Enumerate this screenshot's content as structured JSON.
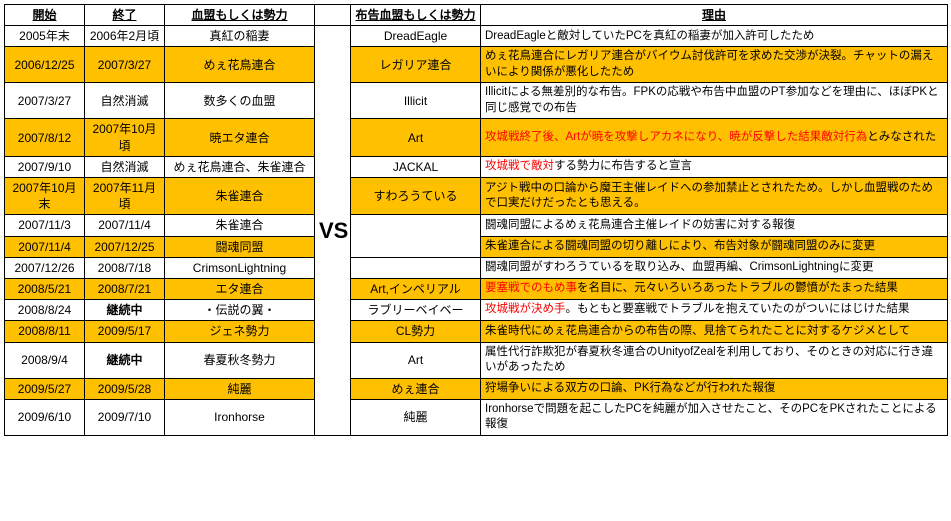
{
  "headers": {
    "start": "開始",
    "end": "終了",
    "clan": "血盟もしくは勢力",
    "vs": "",
    "target": "布告血盟もしくは勢力",
    "reason": "理由"
  },
  "vs_label": "VS",
  "colors": {
    "highlight": "#ffc000",
    "plain": "#ffffff",
    "red_text": "#ff0000"
  },
  "rows": [
    {
      "start": "2005年末",
      "end": "2006年2月頃",
      "clan": "真紅の稲妻",
      "target": "DreadEagle",
      "reason_parts": [
        {
          "t": "DreadEagleと敵対していたPCを真紅の稲妻が加入許可したため",
          "red": false
        }
      ],
      "hl": false
    },
    {
      "start": "2006/12/25",
      "end": "2007/3/27",
      "clan": "めぇ花鳥連合",
      "target": "レガリア連合",
      "reason_parts": [
        {
          "t": "めぇ花鳥連合にレガリア連合がバイウム討伐許可を求めた交渉が決裂。チャットの漏えいにより関係が悪化したため",
          "red": false
        }
      ],
      "hl": true
    },
    {
      "start": "2007/3/27",
      "end": "自然消滅",
      "clan": "数多くの血盟",
      "target": "Illicit",
      "reason_parts": [
        {
          "t": "Illicitによる無差別的な布告。FPKの応戦や布告中血盟のPT参加などを理由に、ほぼPKと同じ感覚での布告",
          "red": false
        }
      ],
      "hl": false
    },
    {
      "start": "2007/8/12",
      "end": "2007年10月頃",
      "clan": "暁エタ連合",
      "target": "Art",
      "reason_parts": [
        {
          "t": "攻城戦終了後、Artが暁を攻撃しアカネになり、暁が反撃した結果敵対行為",
          "red": true
        },
        {
          "t": "とみなされた",
          "red": false
        }
      ],
      "hl": true
    },
    {
      "start": "2007/9/10",
      "end": "自然消滅",
      "clan": "めぇ花鳥連合、朱雀連合",
      "target": "JACKAL",
      "reason_parts": [
        {
          "t": "攻城戦で敵対",
          "red": true
        },
        {
          "t": "する勢力に布告すると宣言",
          "red": false
        }
      ],
      "hl": false
    },
    {
      "start": "2007年10月末",
      "end": "2007年11月頃",
      "clan": "朱雀連合",
      "target": "すわろうている",
      "reason_parts": [
        {
          "t": "アジト戦中の口論から魔王主催レイドへの参加禁止とされたため。しかし血盟戦のためで口実だけだったとも思える。",
          "red": false
        }
      ],
      "hl": true
    },
    {
      "start": "2007/11/3",
      "end": "2007/11/4",
      "clan": "朱雀連合",
      "target": "",
      "reason_parts": [
        {
          "t": "闘魂同盟によるめぇ花鳥連合主催レイドの妨害に対する報復",
          "red": false
        }
      ],
      "hl": false
    },
    {
      "start": "2007/11/4",
      "end": "2007/12/25",
      "clan": "闘魂同盟",
      "target": "めぇ花鳥連合",
      "reason_parts": [
        {
          "t": "朱雀連合による闘魂同盟の切り離しにより、布告対象が闘魂同盟のみに変更",
          "red": false
        }
      ],
      "hl": true
    },
    {
      "start": "2007/12/26",
      "end": "2008/7/18",
      "clan": "CrimsonLightning",
      "target": "",
      "reason_parts": [
        {
          "t": "闘魂同盟がすわろうているを取り込み、血盟再編、CrimsonLightningに変更",
          "red": false
        }
      ],
      "hl": false
    },
    {
      "start": "2008/5/21",
      "end": "2008/7/21",
      "clan": "エタ連合",
      "target": "Art,インペリアル",
      "reason_parts": [
        {
          "t": "要塞戦でのもめ事",
          "red": true
        },
        {
          "t": "を名目に、元々いろいろあったトラブルの鬱憤がたまった結果",
          "red": false
        }
      ],
      "hl": true
    },
    {
      "start": "2008/8/24",
      "end": "継続中",
      "end_bold": true,
      "clan": "・伝説の翼・",
      "target": "ラブリーベイベー",
      "reason_parts": [
        {
          "t": "攻城戦が決め手",
          "red": true
        },
        {
          "t": "。もともと要塞戦でトラブルを抱えていたのがついにはじけた結果",
          "red": false
        }
      ],
      "hl": false
    },
    {
      "start": "2008/8/11",
      "end": "2009/5/17",
      "clan": "ジェネ勢力",
      "target": "CL勢力",
      "reason_parts": [
        {
          "t": "朱雀時代にめぇ花鳥連合からの布告の際、見捨てられたことに対するケジメとして",
          "red": false
        }
      ],
      "hl": true
    },
    {
      "start": "2008/9/4",
      "end": "継続中",
      "end_bold": true,
      "clan": "春夏秋冬勢力",
      "target": "Art",
      "reason_parts": [
        {
          "t": "属性代行詐欺犯が春夏秋冬連合のUnityofZealを利用しており、そのときの対応に行き違いがあったため",
          "red": false
        }
      ],
      "hl": false
    },
    {
      "start": "2009/5/27",
      "end": "2009/5/28",
      "clan": "純麗",
      "target": "めぇ連合",
      "reason_parts": [
        {
          "t": "狩場争いによる双方の口論、PK行為などが行われた報復",
          "red": false
        }
      ],
      "hl": true
    },
    {
      "start": "2009/6/10",
      "end": "2009/7/10",
      "clan": "Ironhorse",
      "target": "純麗",
      "reason_parts": [
        {
          "t": "Ironhorseで問題を起こしたPCを純麗が加入させたこと、そのPCをPKされたことによる報復",
          "red": false
        }
      ],
      "hl": false
    }
  ]
}
